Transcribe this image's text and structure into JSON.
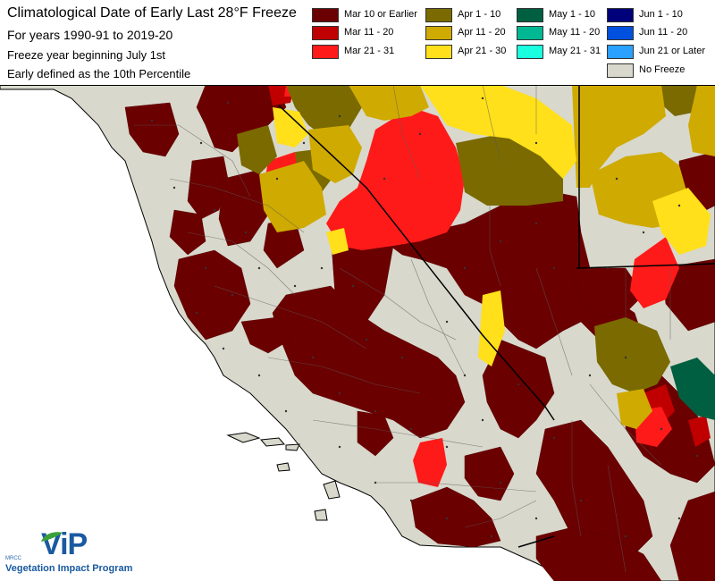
{
  "title": {
    "line1": "Climatological Date of Early Last 28°F Freeze",
    "line2": "For years 1990-91 to 2019-20",
    "line3": "Freeze year beginning July 1st",
    "line4": "Early defined as the 10th Percentile"
  },
  "legend": [
    {
      "label": "Mar 10 or Earlier",
      "color": "#6b0000"
    },
    {
      "label": "Mar 11 - 20",
      "color": "#c00000"
    },
    {
      "label": "Mar 21 - 31",
      "color": "#ff1a1a"
    },
    {
      "label": "Apr 1 - 10",
      "color": "#7a6a00"
    },
    {
      "label": "Apr 11 - 20",
      "color": "#cfaa00"
    },
    {
      "label": "Apr 21 - 30",
      "color": "#ffe01a"
    },
    {
      "label": "May 1 - 10",
      "color": "#005f40"
    },
    {
      "label": "May 11 - 20",
      "color": "#00b894"
    },
    {
      "label": "May 21 - 31",
      "color": "#1affe0"
    },
    {
      "label": "Jun 1 - 10",
      "color": "#00007a"
    },
    {
      "label": "Jun 11 - 20",
      "color": "#0050e0"
    },
    {
      "label": "Jun 21 or Later",
      "color": "#2aa0ff"
    },
    {
      "label": "No Freeze",
      "color": "#d8d8cc"
    }
  ],
  "logo": {
    "brand": "ViP",
    "tagline": "Vegetation Impact Program",
    "org": "MRCC"
  },
  "map": {
    "background_color": "#d8d8cc",
    "ocean_color": "#ffffff"
  }
}
